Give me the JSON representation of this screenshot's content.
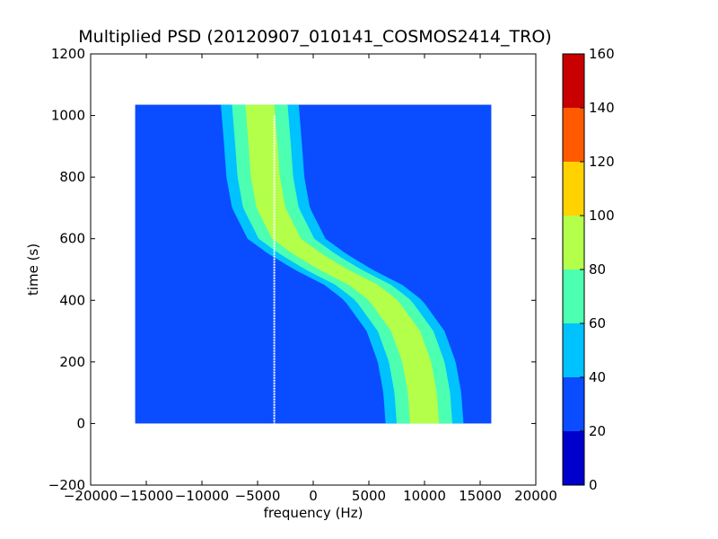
{
  "chart_data": {
    "type": "heatmap",
    "title": "Multiplied PSD (20120907_010141_COSMOS2414_TRO)",
    "xlabel": "frequency (Hz)",
    "ylabel": "time (s)",
    "xlim": [
      -20000,
      20000
    ],
    "ylim": [
      -200,
      1200
    ],
    "xticks": [
      -20000,
      -15000,
      -10000,
      -5000,
      0,
      5000,
      10000,
      15000,
      20000
    ],
    "xtick_labels": [
      "−20000",
      "−15000",
      "−10000",
      "−5000",
      "0",
      "5000",
      "10000",
      "15000",
      "20000"
    ],
    "yticks": [
      -200,
      0,
      200,
      400,
      600,
      800,
      1000,
      1200
    ],
    "ytick_labels": [
      "−200",
      "0",
      "200",
      "400",
      "600",
      "800",
      "1000",
      "1200"
    ],
    "data_extent": {
      "x": [
        -16000,
        16000
      ],
      "y": [
        0,
        1035
      ]
    },
    "colormap": "jet",
    "colorbar": {
      "range": [
        0,
        160
      ],
      "ticks": [
        0,
        20,
        40,
        60,
        80,
        100,
        120,
        140,
        160
      ],
      "tick_labels": [
        "0",
        "20",
        "40",
        "60",
        "80",
        "100",
        "120",
        "140",
        "160"
      ],
      "levels": [
        {
          "from": 0,
          "to": 20,
          "color": "#0000cd"
        },
        {
          "from": 20,
          "to": 40,
          "color": "#0a4cff"
        },
        {
          "from": 40,
          "to": 60,
          "color": "#00c2ff"
        },
        {
          "from": 60,
          "to": 80,
          "color": "#4dffb0"
        },
        {
          "from": 80,
          "to": 100,
          "color": "#b4ff4a"
        },
        {
          "from": 100,
          "to": 120,
          "color": "#ffd200"
        },
        {
          "from": 120,
          "to": 140,
          "color": "#ff5a00"
        },
        {
          "from": 140,
          "to": 160,
          "color": "#c80000"
        }
      ]
    },
    "main_trace": {
      "description_level": "S-shaped Doppler trace of multiplied PSD",
      "center_points": [
        {
          "t": 0,
          "f": 10000
        },
        {
          "t": 100,
          "f": 9800
        },
        {
          "t": 200,
          "f": 9300
        },
        {
          "t": 300,
          "f": 8300
        },
        {
          "t": 400,
          "f": 6300
        },
        {
          "t": 450,
          "f": 4500
        },
        {
          "t": 500,
          "f": 1800
        },
        {
          "t": 550,
          "f": -500
        },
        {
          "t": 600,
          "f": -2400
        },
        {
          "t": 700,
          "f": -3800
        },
        {
          "t": 800,
          "f": -4300
        },
        {
          "t": 900,
          "f": -4500
        },
        {
          "t": 1035,
          "f": -4800
        }
      ],
      "peak_level": 90
    },
    "marker_line": {
      "f": -3500,
      "t_range": [
        0,
        1000
      ]
    },
    "background_level": 25
  }
}
